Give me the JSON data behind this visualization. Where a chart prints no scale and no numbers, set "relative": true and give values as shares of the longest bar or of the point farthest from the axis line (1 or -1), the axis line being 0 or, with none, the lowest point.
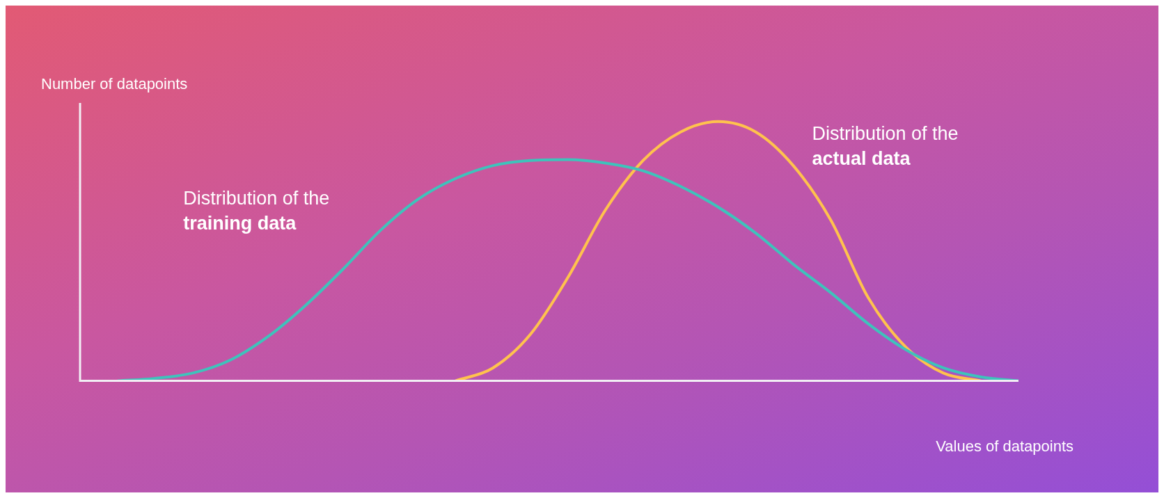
{
  "chart_data": {
    "type": "line",
    "relative": true,
    "xlabel": "Values of datapoints",
    "ylabel": "Number of datapoints",
    "legend": false,
    "marker": "none",
    "line_style": "solid",
    "categories": [
      null,
      null,
      null,
      null,
      null,
      null,
      null,
      null,
      null,
      null,
      null,
      null,
      null,
      null,
      null,
      null,
      null,
      null,
      null,
      null,
      null,
      null,
      null,
      null,
      null,
      null
    ],
    "series": [
      {
        "name": "Distribution of the training data",
        "color": "#3ec3bb",
        "values": [
          null,
          0,
          0.01,
          0.03,
          0.08,
          0.17,
          0.29,
          0.43,
          0.58,
          0.7,
          0.78,
          0.83,
          0.85,
          0.853,
          0.84,
          0.81,
          0.75,
          0.67,
          0.57,
          0.45,
          0.34,
          0.22,
          0.12,
          0.05,
          0.015,
          0
        ]
      },
      {
        "name": "Distribution of the actual data",
        "color": "#ffc24d",
        "values": [
          null,
          null,
          null,
          null,
          null,
          null,
          null,
          null,
          null,
          null,
          0,
          0.05,
          0.18,
          0.4,
          0.66,
          0.85,
          0.96,
          1,
          0.96,
          0.83,
          0.62,
          0.32,
          0.13,
          0.03,
          0,
          null
        ]
      }
    ]
  }
}
